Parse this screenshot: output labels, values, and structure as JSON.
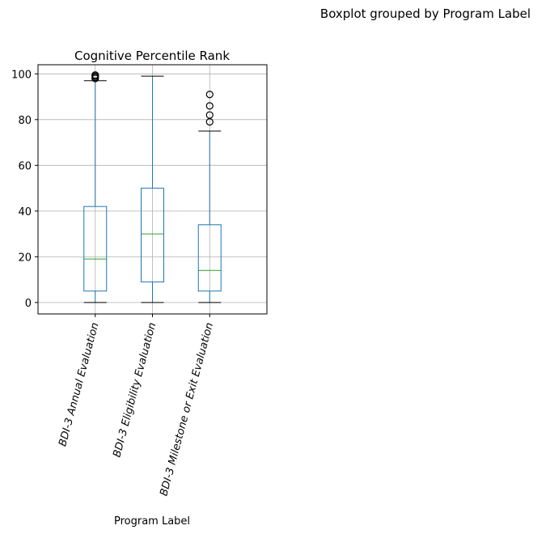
{
  "figure": {
    "suptitle": "Boxplot grouped by Program Label"
  },
  "chart_data": {
    "type": "box",
    "title": "Cognitive Percentile Rank",
    "xlabel": "Program Label",
    "ylabel": "",
    "ylim": [
      -5,
      104
    ],
    "yticks": [
      0,
      20,
      40,
      60,
      80,
      100
    ],
    "grid": true,
    "colors": {
      "box": "#1f77b4",
      "median": "#2ca02c",
      "cap": "#000000",
      "grid": "#b0b0b0"
    },
    "categories": [
      "BDI-3 Annual Evaluation",
      "BDI-3 Eligibility Evaluation",
      "BDI-3 Milestone or Exit Evaluation"
    ],
    "boxes": [
      {
        "category": "BDI-3 Annual Evaluation",
        "whisker_low": 0,
        "q1": 5,
        "median": 19,
        "q3": 42,
        "whisker_high": 97,
        "outliers": [
          98,
          98.5,
          99,
          99.5
        ]
      },
      {
        "category": "BDI-3 Eligibility Evaluation",
        "whisker_low": 0,
        "q1": 9,
        "median": 30,
        "q3": 50,
        "whisker_high": 99,
        "outliers": []
      },
      {
        "category": "BDI-3 Milestone or Exit Evaluation",
        "whisker_low": 0,
        "q1": 5,
        "median": 14,
        "q3": 34,
        "whisker_high": 75,
        "outliers": [
          79,
          82,
          86,
          91
        ]
      }
    ]
  }
}
